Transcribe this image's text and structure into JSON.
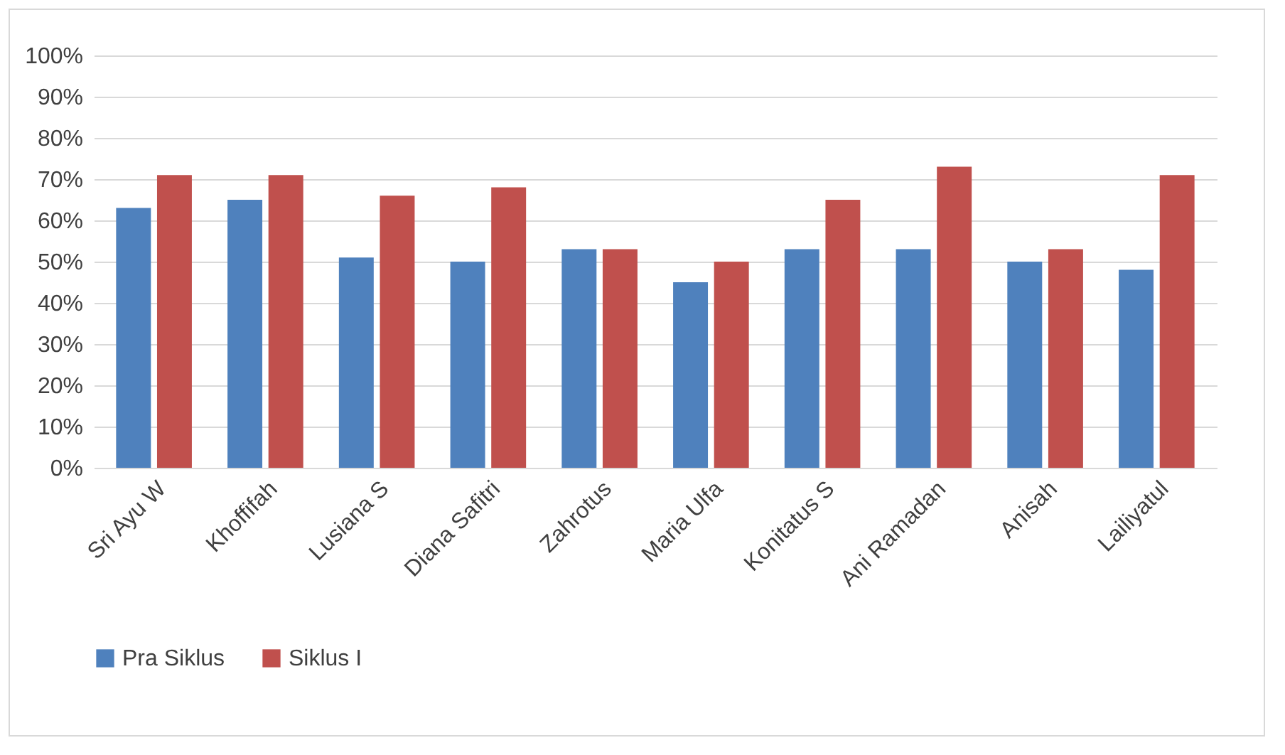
{
  "chart_data": {
    "type": "bar",
    "categories": [
      "Sri Ayu W",
      "Khoffifah",
      "Lusiana S",
      "Diana Safitri",
      "Zahrotus",
      "Maria Ulfa",
      "Konitatus S",
      "Ani Ramadan",
      "Anisah",
      "Lailiyatul"
    ],
    "series": [
      {
        "name": "Pra Siklus",
        "color": "#4f81bd",
        "values": [
          63,
          65,
          51,
          50,
          53,
          45,
          53,
          53,
          50,
          48
        ]
      },
      {
        "name": "Siklus I",
        "color": "#c0504d",
        "values": [
          71,
          71,
          66,
          68,
          53,
          50,
          65,
          73,
          53,
          71
        ]
      }
    ],
    "ylim": [
      0,
      100
    ],
    "yticks": [
      {
        "value": 0,
        "label": "0%"
      },
      {
        "value": 10,
        "label": "10%"
      },
      {
        "value": 20,
        "label": "20%"
      },
      {
        "value": 30,
        "label": "30%"
      },
      {
        "value": 40,
        "label": "40%"
      },
      {
        "value": 50,
        "label": "50%"
      },
      {
        "value": 60,
        "label": "60%"
      },
      {
        "value": 70,
        "label": "70%"
      },
      {
        "value": 80,
        "label": "80%"
      },
      {
        "value": 90,
        "label": "90%"
      },
      {
        "value": 100,
        "label": "100%"
      }
    ],
    "grid": "y",
    "legend": "bottom"
  }
}
